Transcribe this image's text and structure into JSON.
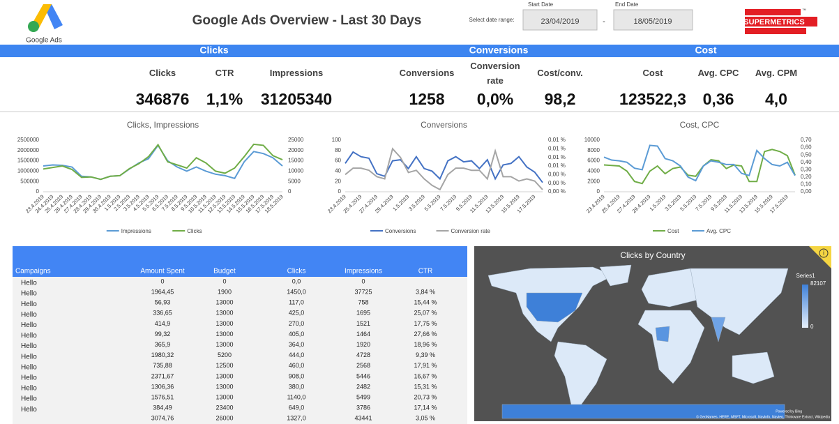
{
  "header": {
    "logo_text": "Google Ads",
    "title": "Google Ads Overview - Last 30 Days",
    "date_prompt": "Select date range:",
    "start_label": "Start Date",
    "start_date": "23/04/2019",
    "separator": "-",
    "end_label": "End Date",
    "end_date": "18/05/2019",
    "brand": "SUPERMETRICS",
    "brand_mark": "™"
  },
  "kpis": {
    "sections": [
      "Clicks",
      "Conversions",
      "Cost"
    ],
    "items": [
      {
        "label": "Clicks",
        "value": 346876
      },
      {
        "label": "CTR",
        "value": "1,1%"
      },
      {
        "label": "Impressions",
        "value": 31205340
      },
      {
        "label": "Conversions",
        "value": 1258
      },
      {
        "label": "Conversion rate",
        "value": "0,0%"
      },
      {
        "label": "Cost/conv.",
        "value": "98,2"
      },
      {
        "label": "Cost",
        "value": "123522,3"
      },
      {
        "label": "Avg. CPC",
        "value": "0,36"
      },
      {
        "label": "Avg. CPM",
        "value": "4,0"
      }
    ]
  },
  "chart_data": [
    {
      "type": "line",
      "title": "Clicks, Impressions",
      "categories": [
        "23.4.2019",
        "24.4.2019",
        "25.4.2019",
        "26.4.2019",
        "27.4.2019",
        "28.4.2019",
        "29.4.2019",
        "30.4.2019",
        "1.5.2019",
        "2.5.2019",
        "3.5.2019",
        "4.5.2019",
        "5.5.2019",
        "6.5.2019",
        "7.5.2019",
        "8.5.2019",
        "9.5.2019",
        "10.5.2019",
        "11.5.2019",
        "12.5.2019",
        "13.5.2019",
        "14.5.2019",
        "15.5.2019",
        "16.5.2019",
        "17.5.2019",
        "18.5.2019"
      ],
      "series": [
        {
          "name": "Impressions",
          "color": "#5b9bd5",
          "values": [
            1250000,
            1300000,
            1280000,
            1200000,
            750000,
            720000,
            600000,
            750000,
            780000,
            1100000,
            1400000,
            1600000,
            2250000,
            1500000,
            1200000,
            1000000,
            1200000,
            1000000,
            850000,
            780000,
            650000,
            1450000,
            1950000,
            1850000,
            1650000,
            1250000
          ]
        },
        {
          "name": "Clicks",
          "color": "#70ad47",
          "axis": "y2",
          "values": [
            11000,
            11800,
            12500,
            10800,
            7000,
            7200,
            6000,
            7500,
            7800,
            11200,
            13600,
            17000,
            22800,
            14500,
            13000,
            11500,
            16500,
            14000,
            10000,
            9000,
            11500,
            17000,
            23000,
            22500,
            17500,
            15500
          ]
        }
      ],
      "ylim": [
        0,
        2500000
      ],
      "yticks": [
        0,
        500000,
        1000000,
        1500000,
        2000000,
        2500000
      ],
      "y2lim": [
        0,
        25000
      ],
      "y2ticks": [
        0,
        5000,
        10000,
        15000,
        20000,
        25000
      ]
    },
    {
      "type": "line",
      "title": "Conversions",
      "categories": [
        "23.4.2019",
        null,
        "25.4.2019",
        null,
        "27.4.2019",
        null,
        "29.4.2019",
        null,
        "1.5.2019",
        null,
        "3.5.2019",
        null,
        "5.5.2019",
        null,
        "7.5.2019",
        null,
        "9.5.2019",
        null,
        "11.5.2019",
        null,
        "13.5.2019",
        null,
        "15.5.2019",
        null,
        "17.5.2019",
        null
      ],
      "series": [
        {
          "name": "Conversions",
          "color": "#4472c4",
          "values": [
            55,
            77,
            68,
            65,
            35,
            30,
            60,
            62,
            45,
            68,
            45,
            40,
            25,
            60,
            68,
            58,
            60,
            45,
            62,
            25,
            52,
            55,
            68,
            48,
            38,
            18
          ]
        },
        {
          "name": "Conversion rate",
          "color": "#a5a5a5",
          "axis": "y2",
          "values": [
            0.004,
            0.0055,
            0.0055,
            0.005,
            0.0035,
            0.003,
            0.01,
            0.008,
            0.0045,
            0.005,
            0.003,
            0.0015,
            0.0005,
            0.004,
            0.0055,
            0.0055,
            0.005,
            0.005,
            0.003,
            0.0095,
            0.0035,
            0.0035,
            0.0025,
            0.003,
            0.0025,
            0.0005
          ]
        }
      ],
      "ylim": [
        0,
        100
      ],
      "yticks": [
        0,
        20,
        40,
        60,
        80,
        100
      ],
      "y2lim": [
        0,
        0.012
      ],
      "y2ticks": [
        {
          "value": 0,
          "label": "0,00 %"
        },
        {
          "value": 0.002,
          "label": "0,00 %"
        },
        {
          "value": 0.004,
          "label": "0,00 %"
        },
        {
          "value": 0.006,
          "label": "0,01 %"
        },
        {
          "value": 0.008,
          "label": "0,01 %"
        },
        {
          "value": 0.01,
          "label": "0,01 %"
        },
        {
          "value": 0.012,
          "label": "0,01 %"
        }
      ]
    },
    {
      "type": "line",
      "title": "Cost, CPC",
      "categories": [
        "23.4.2019",
        null,
        "25.4.2019",
        null,
        "27.4.2019",
        null,
        "29.4.2019",
        null,
        "1.5.2019",
        null,
        "3.5.2019",
        null,
        "5.5.2019",
        null,
        "7.5.2019",
        null,
        "9.5.2019",
        null,
        "11.5.2019",
        null,
        "13.5.2019",
        null,
        "15.5.2019",
        null,
        "17.5.2019",
        null
      ],
      "series": [
        {
          "name": "Cost",
          "color": "#70ad47",
          "values": [
            5200,
            5100,
            5000,
            4000,
            2000,
            1600,
            4000,
            5000,
            3500,
            4500,
            4800,
            3200,
            3000,
            5000,
            6200,
            6000,
            4500,
            5200,
            5000,
            2000,
            2000,
            7800,
            8200,
            7800,
            7000,
            3200
          ]
        },
        {
          "name": "Avg. CPC",
          "color": "#5b9bd5",
          "axis": "y2",
          "values": [
            0.47,
            0.43,
            0.42,
            0.4,
            0.32,
            0.3,
            0.63,
            0.62,
            0.45,
            0.42,
            0.35,
            0.2,
            0.15,
            0.35,
            0.42,
            0.4,
            0.37,
            0.37,
            0.25,
            0.22,
            0.56,
            0.45,
            0.37,
            0.35,
            0.4,
            0.22
          ]
        }
      ],
      "ylim": [
        0,
        10000
      ],
      "yticks": [
        0,
        2000,
        4000,
        6000,
        8000,
        10000
      ],
      "y2lim": [
        0,
        0.7
      ],
      "y2ticks": [
        {
          "value": 0,
          "label": "0,00"
        },
        {
          "value": 0.1,
          "label": "0,10"
        },
        {
          "value": 0.2,
          "label": "0,20"
        },
        {
          "value": 0.3,
          "label": "0,30"
        },
        {
          "value": 0.4,
          "label": "0,40"
        },
        {
          "value": 0.5,
          "label": "0,50"
        },
        {
          "value": 0.6,
          "label": "0,60"
        },
        {
          "value": 0.7,
          "label": "0,70"
        }
      ]
    }
  ],
  "table": {
    "columns": [
      "Campaigns",
      "Amount Spent",
      "Budget",
      "Clicks",
      "Impressions",
      "CTR"
    ],
    "rows": [
      {
        "name": "Hello",
        "cells": [
          "0",
          "0",
          "0,0",
          "0"
        ]
      },
      {
        "name": "Hello",
        "cells": [
          "1964,45",
          "1900",
          "1450,0",
          "37725",
          "3,84 %"
        ]
      },
      {
        "name": "Hello",
        "cells": [
          "56,93",
          "13000",
          "117,0",
          "758",
          "15,44 %"
        ]
      },
      {
        "name": "Hello",
        "cells": [
          "336,65",
          "13000",
          "425,0",
          "1695",
          "25,07 %"
        ]
      },
      {
        "name": "Hello",
        "cells": [
          "414,9",
          "13000",
          "270,0",
          "1521",
          "17,75 %"
        ]
      },
      {
        "name": "Hello",
        "cells": [
          "99,32",
          "13000",
          "405,0",
          "1464",
          "27,66 %"
        ]
      },
      {
        "name": "Hello",
        "cells": [
          "365,9",
          "13000",
          "364,0",
          "1920",
          "18,96 %"
        ]
      },
      {
        "name": "Hello",
        "cells": [
          "1980,32",
          "5200",
          "444,0",
          "4728",
          "9,39 %"
        ]
      },
      {
        "name": "Hello",
        "cells": [
          "735,88",
          "12500",
          "460,0",
          "2568",
          "17,91 %"
        ]
      },
      {
        "name": "Hello",
        "cells": [
          "2371,67",
          "13000",
          "908,0",
          "5446",
          "16,67 %"
        ]
      },
      {
        "name": "Hello",
        "cells": [
          "1306,36",
          "13000",
          "380,0",
          "2482",
          "15,31 %"
        ]
      },
      {
        "name": "Hello",
        "cells": [
          "1576,51",
          "13000",
          "1140,0",
          "5499",
          "20,73 %"
        ]
      },
      {
        "name": "Hello",
        "cells": [
          "384,49",
          "23400",
          "649,0",
          "3786",
          "17,14 %"
        ]
      },
      {
        "cells": [
          "3074,76",
          "26000",
          "1327,0",
          "43441",
          "3,05 %"
        ]
      }
    ]
  },
  "map": {
    "title": "Clicks by Country",
    "info": "i",
    "legend_title": "Series1",
    "legend_max": "82107",
    "legend_min": "0",
    "powered": "Powered by Bing",
    "attribution": "© GeoNames, HERE, MSFT, Microsoft, NavInfo, Navteq, Thinkware Extract, Wikipedia"
  }
}
